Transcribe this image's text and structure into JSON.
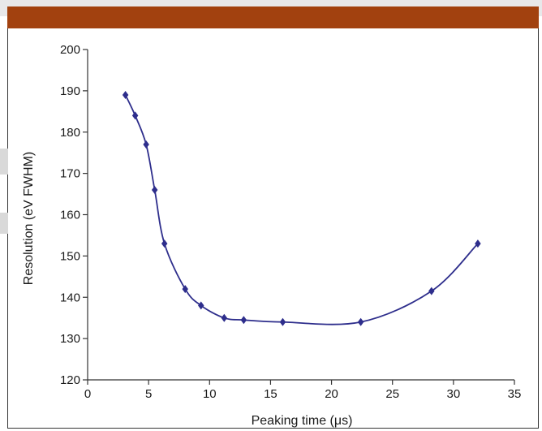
{
  "colors": {
    "banner": "#a2410f",
    "series": "#2e2e8c",
    "axis": "#333333"
  },
  "chart_data": {
    "type": "line",
    "title": "",
    "xlabel": "Peaking time (μs)",
    "ylabel": "Resolution (eV FWHM)",
    "xlim": [
      0,
      35
    ],
    "ylim": [
      120,
      200
    ],
    "xticks": [
      0,
      5,
      10,
      15,
      20,
      25,
      30,
      35
    ],
    "yticks": [
      120,
      130,
      140,
      150,
      160,
      170,
      180,
      190,
      200
    ],
    "grid": false,
    "legend": "none",
    "marker": "diamond",
    "series": [
      {
        "x": [
          3.1,
          3.9,
          4.8,
          5.5,
          6.3,
          8.0,
          9.3,
          11.2,
          12.8,
          16.0,
          22.4,
          28.2,
          32.0
        ],
        "y": [
          189,
          184,
          177,
          166,
          153,
          142,
          138,
          135,
          134.5,
          134,
          134,
          141.5,
          153
        ]
      }
    ]
  }
}
